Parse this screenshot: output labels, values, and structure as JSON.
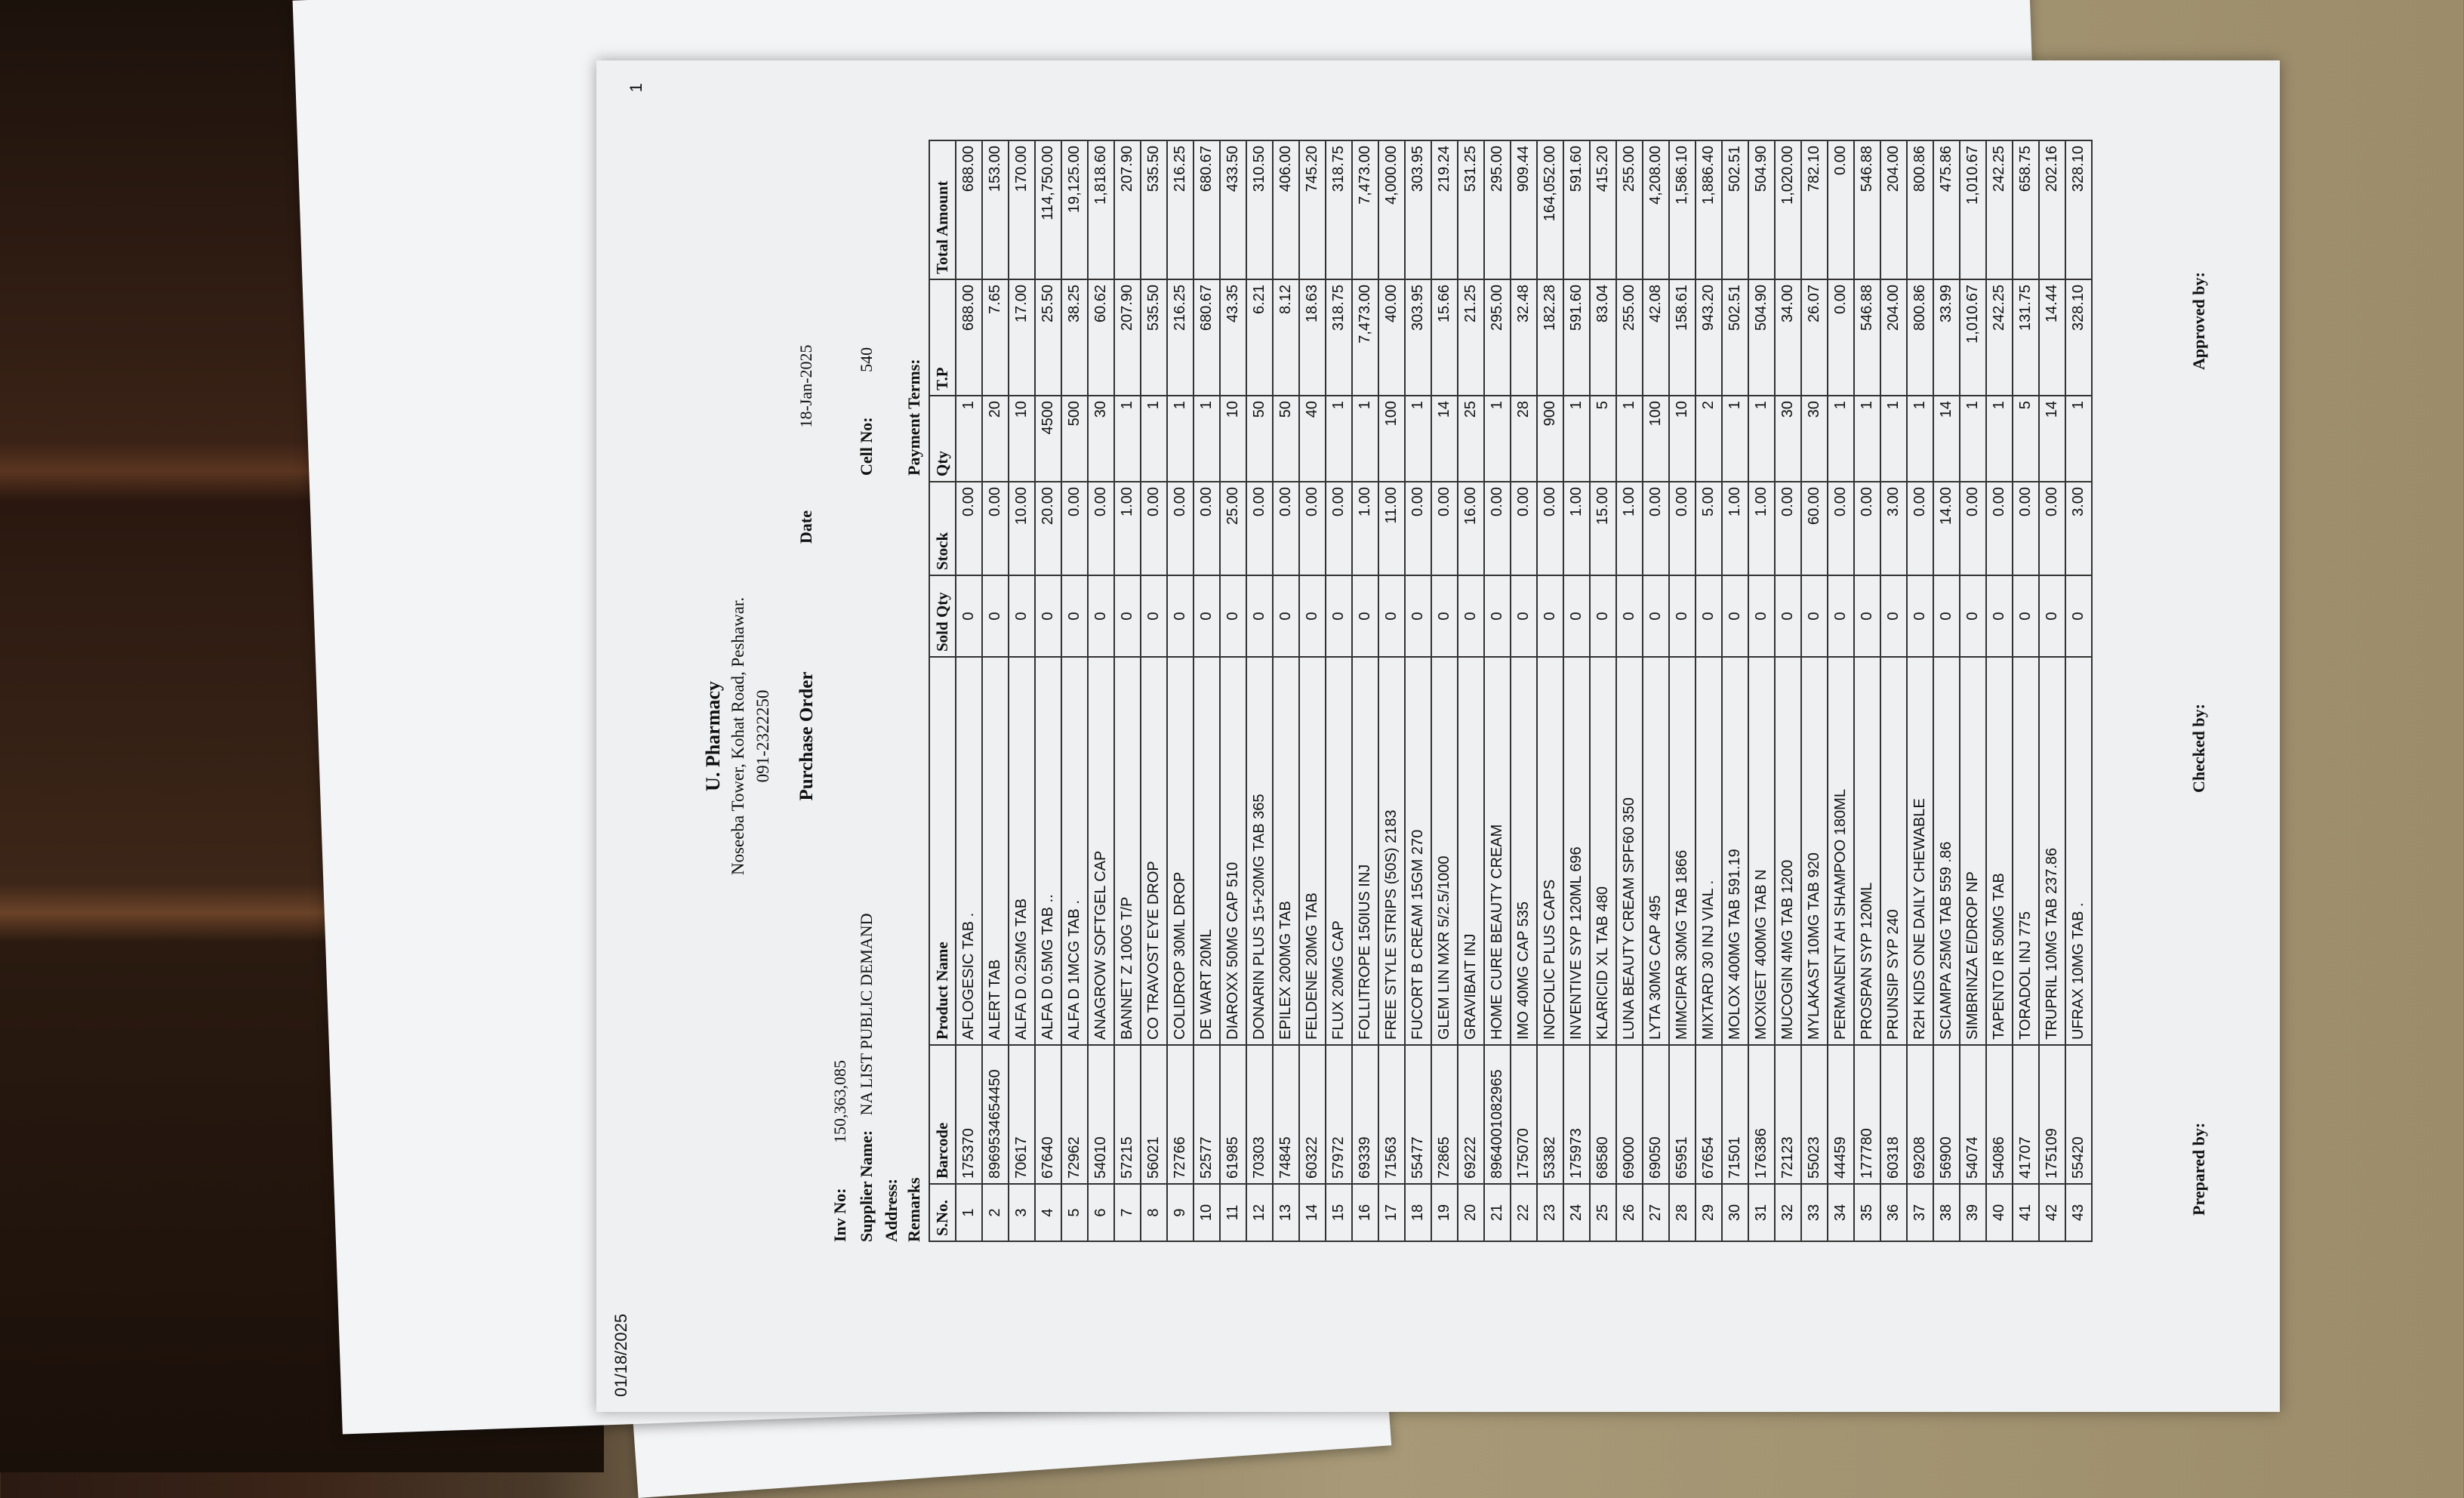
{
  "document": {
    "print_date": "01/18/2025",
    "page_number": "1",
    "pharmacy_name": "U. Pharmacy",
    "address": "Noseeba Tower, Kohat Road, Peshawar.",
    "phone": "091-2322250",
    "title": "Purchase Order",
    "date_label": "Date",
    "date_value": "18-Jan-2025",
    "inv_no_label": "Inv No:",
    "inv_no_value": "150,363,085",
    "supplier_label": "Supplier Name:",
    "supplier_value": "NA LIST PUBLIC DEMAND",
    "address_label": "Address:",
    "remarks_label": "Remarks",
    "cell_label": "Cell No:",
    "cell_value": "540",
    "payment_terms_label": "Payment Terms:"
  },
  "table": {
    "columns": [
      "S.No.",
      "Barcode",
      "Product Name",
      "Sold Qty",
      "Stock",
      "Qty",
      "T.P",
      "Total Amount"
    ],
    "rows": [
      [
        "1",
        "175370",
        "AFLOGESIC TAB .",
        "0",
        "0.00",
        "1",
        "688.00",
        "688.00"
      ],
      [
        "2",
        "8969534654450",
        "ALERT TAB",
        "0",
        "0.00",
        "20",
        "7.65",
        "153.00"
      ],
      [
        "3",
        "70617",
        "ALFA D 0.25MG TAB",
        "0",
        "10.00",
        "10",
        "17.00",
        "170.00"
      ],
      [
        "4",
        "67640",
        "ALFA D 0.5MG TAB ..",
        "0",
        "20.00",
        "4500",
        "25.50",
        "114,750.00"
      ],
      [
        "5",
        "72962",
        "ALFA D 1MCG TAB .",
        "0",
        "0.00",
        "500",
        "38.25",
        "19,125.00"
      ],
      [
        "6",
        "54010",
        "ANAGROW SOFTGEL CAP",
        "0",
        "0.00",
        "30",
        "60.62",
        "1,818.60"
      ],
      [
        "7",
        "57215",
        "BANNET Z 100G T/P",
        "0",
        "1.00",
        "1",
        "207.90",
        "207.90"
      ],
      [
        "8",
        "56021",
        "CO TRAVOST EYE DROP",
        "0",
        "0.00",
        "1",
        "535.50",
        "535.50"
      ],
      [
        "9",
        "72766",
        "COLIDROP 30ML DROP",
        "0",
        "0.00",
        "1",
        "216.25",
        "216.25"
      ],
      [
        "10",
        "52577",
        "DE WART 20ML",
        "0",
        "0.00",
        "1",
        "680.67",
        "680.67"
      ],
      [
        "11",
        "61985",
        "DIAROXX 50MG CAP 510",
        "0",
        "25.00",
        "10",
        "43.35",
        "433.50"
      ],
      [
        "12",
        "70303",
        "DONARIN PLUS 15+20MG TAB 365",
        "0",
        "0.00",
        "50",
        "6.21",
        "310.50"
      ],
      [
        "13",
        "74845",
        "EPILEX 200MG TAB",
        "0",
        "0.00",
        "50",
        "8.12",
        "406.00"
      ],
      [
        "14",
        "60322",
        "FELDENE 20MG TAB",
        "0",
        "0.00",
        "40",
        "18.63",
        "745.20"
      ],
      [
        "15",
        "57972",
        "FLUX 20MG CAP",
        "0",
        "0.00",
        "1",
        "318.75",
        "318.75"
      ],
      [
        "16",
        "69339",
        "FOLLITROPE 150IUS INJ",
        "0",
        "1.00",
        "1",
        "7,473.00",
        "7,473.00"
      ],
      [
        "17",
        "71563",
        "FREE STYLE STRIPS (50S) 2183",
        "0",
        "11.00",
        "100",
        "40.00",
        "4,000.00"
      ],
      [
        "18",
        "55477",
        "FUCORT B CREAM 15GM 270",
        "0",
        "0.00",
        "1",
        "303.95",
        "303.95"
      ],
      [
        "19",
        "72865",
        "GLEM LIN MXR 5/2.5/1000",
        "0",
        "0.00",
        "14",
        "15.66",
        "219.24"
      ],
      [
        "20",
        "69222",
        "GRAVIBAIT INJ",
        "0",
        "16.00",
        "25",
        "21.25",
        "531.25"
      ],
      [
        "21",
        "8964001082965",
        "HOME CURE BEAUTY CREAM",
        "0",
        "0.00",
        "1",
        "295.00",
        "295.00"
      ],
      [
        "22",
        "175070",
        "IMO 40MG CAP 535",
        "0",
        "0.00",
        "28",
        "32.48",
        "909.44"
      ],
      [
        "23",
        "53382",
        "INOFOLIC PLUS CAPS",
        "0",
        "0.00",
        "900",
        "182.28",
        "164,052.00"
      ],
      [
        "24",
        "175973",
        "INVENTIVE SYP 120ML 696",
        "0",
        "1.00",
        "1",
        "591.60",
        "591.60"
      ],
      [
        "25",
        "68580",
        "KLARICID XL TAB 480",
        "0",
        "15.00",
        "5",
        "83.04",
        "415.20"
      ],
      [
        "26",
        "69000",
        "LUNA BEAUTY CREAM SPF60 350",
        "0",
        "1.00",
        "1",
        "255.00",
        "255.00"
      ],
      [
        "27",
        "69050",
        "LYTA 30MG CAP 495",
        "0",
        "0.00",
        "100",
        "42.08",
        "4,208.00"
      ],
      [
        "28",
        "65951",
        "MIMCIPAR 30MG TAB 1866",
        "0",
        "0.00",
        "10",
        "158.61",
        "1,586.10"
      ],
      [
        "29",
        "67654",
        "MIXTARD 30 INJ VIAL .",
        "0",
        "5.00",
        "2",
        "943.20",
        "1,886.40"
      ],
      [
        "30",
        "71501",
        "MOLOX 400MG TAB 591.19",
        "0",
        "1.00",
        "1",
        "502.51",
        "502.51"
      ],
      [
        "31",
        "176386",
        "MOXIGET 400MG TAB N",
        "0",
        "1.00",
        "1",
        "504.90",
        "504.90"
      ],
      [
        "32",
        "72123",
        "MUCOGIN 4MG TAB 1200",
        "0",
        "0.00",
        "30",
        "34.00",
        "1,020.00"
      ],
      [
        "33",
        "55023",
        "MYLAKAST 10MG TAB 920",
        "0",
        "60.00",
        "30",
        "26.07",
        "782.10"
      ],
      [
        "34",
        "44459",
        "PERMANENT AH SHAMPOO 180ML",
        "0",
        "0.00",
        "1",
        "0.00",
        "0.00"
      ],
      [
        "35",
        "177780",
        "PROSPAN SYP 120ML",
        "0",
        "0.00",
        "1",
        "546.88",
        "546.88"
      ],
      [
        "36",
        "60318",
        "PRUNSIP SYP 240",
        "0",
        "3.00",
        "1",
        "204.00",
        "204.00"
      ],
      [
        "37",
        "69208",
        "R2H KIDS ONE DAILY CHEWABLE",
        "0",
        "0.00",
        "1",
        "800.86",
        "800.86"
      ],
      [
        "38",
        "56900",
        "SCIAMPA 25MG TAB 559 .86",
        "0",
        "14.00",
        "14",
        "33.99",
        "475.86"
      ],
      [
        "39",
        "54074",
        "SIMBRINZA E/DROP NP",
        "0",
        "0.00",
        "1",
        "1,010.67",
        "1,010.67"
      ],
      [
        "40",
        "54086",
        "TAPENTO IR 50MG TAB",
        "0",
        "0.00",
        "1",
        "242.25",
        "242.25"
      ],
      [
        "41",
        "41707",
        "TORADOL INJ 775",
        "0",
        "0.00",
        "5",
        "131.75",
        "658.75"
      ],
      [
        "42",
        "175109",
        "TRUPRIL 10MG TAB 237.86",
        "0",
        "0.00",
        "14",
        "14.44",
        "202.16"
      ],
      [
        "43",
        "55420",
        "UFRAX 10MG TAB .",
        "0",
        "3.00",
        "1",
        "328.10",
        "328.10"
      ]
    ]
  },
  "footer": {
    "prepared_by": "Prepared by:",
    "checked_by": "Checked by:",
    "approved_by": "Approved by:"
  }
}
